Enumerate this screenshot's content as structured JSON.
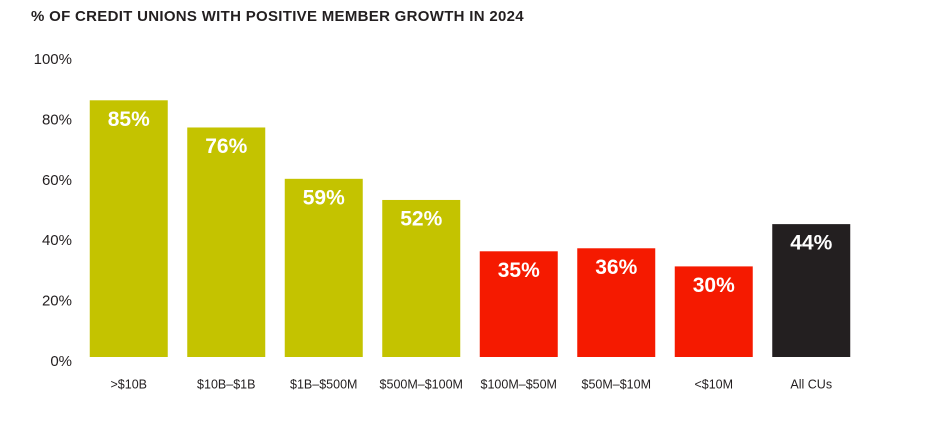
{
  "chart_data": {
    "type": "bar",
    "title": "% OF CREDIT UNIONS WITH POSITIVE MEMBER GROWTH IN 2024",
    "categories": [
      ">$10B",
      "$10B–$1B",
      "$1B–$500M",
      "$500M–$100M",
      "$100M–$50M",
      "$50M–$10M",
      "<$10M",
      "All CUs"
    ],
    "values": [
      85,
      76,
      59,
      52,
      35,
      36,
      30,
      44
    ],
    "value_labels": [
      "85%",
      "76%",
      "59%",
      "52%",
      "35%",
      "36%",
      "30%",
      "44%"
    ],
    "colors": [
      "#c4c300",
      "#c4c300",
      "#c4c300",
      "#c4c300",
      "#f51a00",
      "#f51a00",
      "#f51a00",
      "#231f20"
    ],
    "ylim": [
      0,
      100
    ],
    "yticks": [
      {
        "value": 0,
        "label": "0%"
      },
      {
        "value": 20,
        "label": "20%"
      },
      {
        "value": 40,
        "label": "40%"
      },
      {
        "value": 60,
        "label": "60%"
      },
      {
        "value": 80,
        "label": "80%"
      },
      {
        "value": 100,
        "label": "100%"
      }
    ],
    "grid": false
  }
}
